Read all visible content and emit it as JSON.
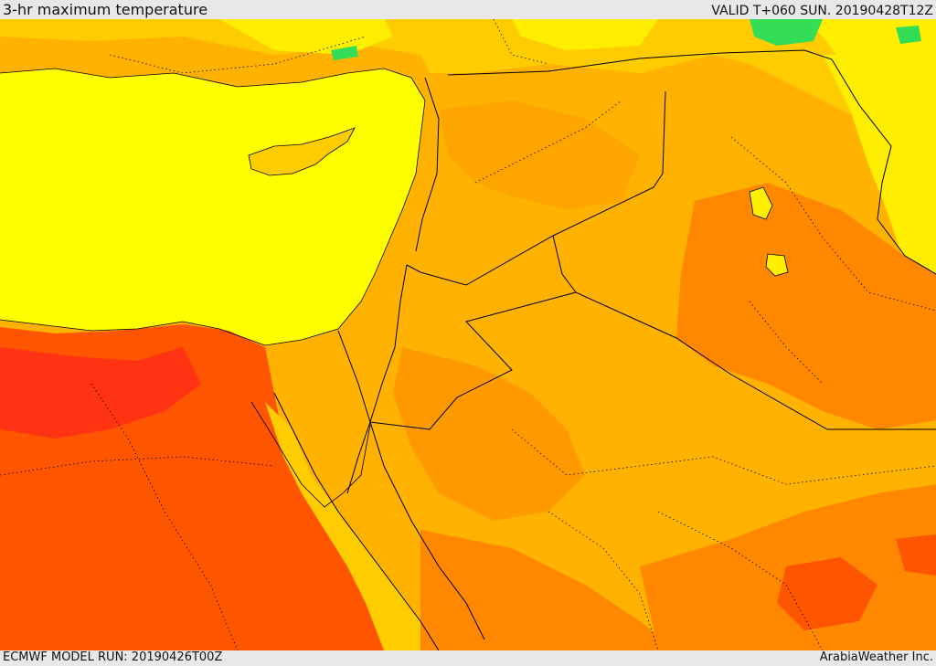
{
  "header": {
    "title": "3-hr maximum temperature",
    "valid": "VALID T+060 SUN. 20190428T12Z"
  },
  "footer": {
    "model_run": "ECMWF MODEL RUN: 20190426T00Z",
    "credit": "ArabiaWeather Inc."
  },
  "palette": {
    "sea_yellow": "#ffff00",
    "light_yellow": "#f5e600",
    "amber": "#ffcc00",
    "orange_light": "#ffb300",
    "orange": "#ff9900",
    "orange_dark": "#ff7700",
    "red_orange": "#ff5500",
    "red": "#ff3311",
    "green": "#33dd55",
    "border_line": "#000000"
  }
}
